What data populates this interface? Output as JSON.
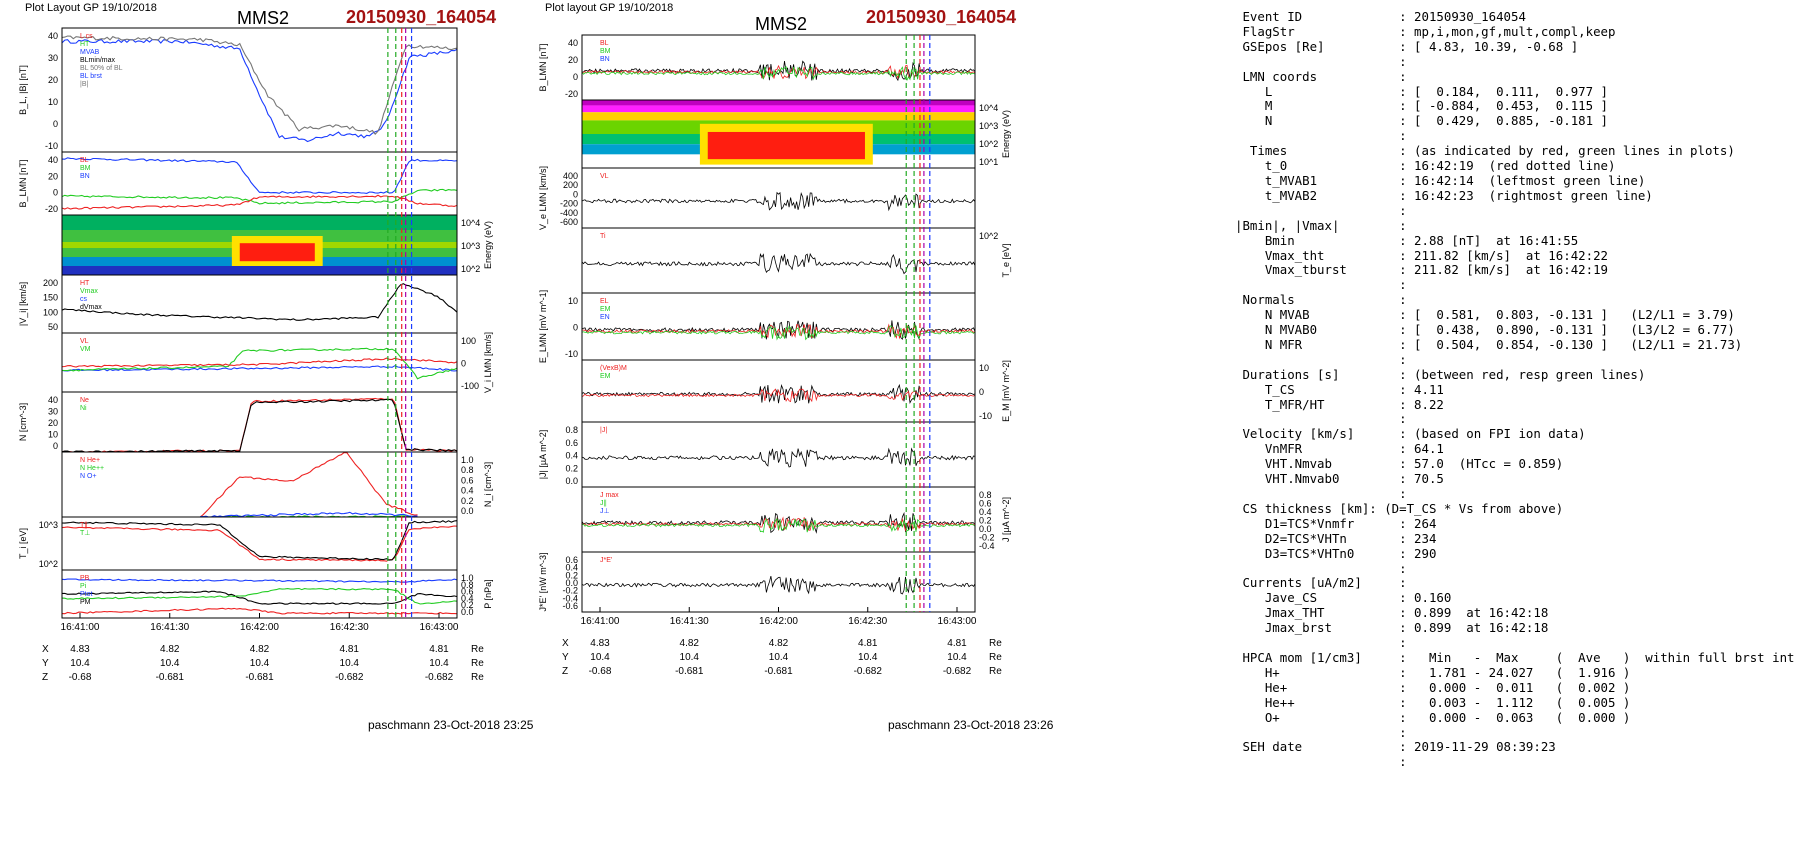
{
  "left": {
    "layout_label": "Plot Layout GP 19/10/2018",
    "spacecraft": "MMS2",
    "event_label": "20150930_164054",
    "footer": "paschmann 23-Oct-2018 23:25"
  },
  "right": {
    "layout_label": "Plot layout GP 19/10/2018",
    "spacecraft": "MMS2",
    "event_label": "20150930_164054",
    "footer": "paschmann 23-Oct-2018 23:26"
  },
  "time_ticks": [
    "16:41:00",
    "16:41:30",
    "16:42:00",
    "16:42:30",
    "16:43:00"
  ],
  "position_table": {
    "unit": "Re",
    "rows": [
      {
        "label": "X",
        "values": [
          "4.83",
          "4.82",
          "4.82",
          "4.81",
          "4.81"
        ]
      },
      {
        "label": "Y",
        "values": [
          "10.4",
          "10.4",
          "10.4",
          "10.4",
          "10.4"
        ]
      },
      {
        "label": "Z",
        "values": [
          "-0.68",
          "-0.681",
          "-0.681",
          "-0.682",
          "-0.682"
        ]
      }
    ]
  },
  "chart_data": [
    {
      "figure": "left",
      "type": "line",
      "ylabel": "B_L, |B| [nT]",
      "ylim": [
        -20,
        45
      ],
      "yticks": [
        "40",
        "30",
        "20",
        "10",
        "0",
        "-10"
      ],
      "legend": [
        "L cs",
        "HT",
        "MVAB",
        "BLmin/max",
        "BL 50% of BL",
        "BL brst",
        "|B|"
      ],
      "series": [
        {
          "name": "BL",
          "color": "#1a3cff",
          "points": [
            [
              0,
              38
            ],
            [
              0.3,
              38
            ],
            [
              0.38,
              36
            ],
            [
              0.45,
              34
            ],
            [
              0.5,
              10
            ],
            [
              0.55,
              -12
            ],
            [
              0.62,
              -14
            ],
            [
              0.7,
              -10
            ],
            [
              0.78,
              -12
            ],
            [
              0.82,
              -5
            ],
            [
              0.88,
              30
            ],
            [
              1,
              33
            ]
          ]
        },
        {
          "name": "|B|",
          "color": "#777777",
          "points": [
            [
              0,
              40
            ],
            [
              0.35,
              39
            ],
            [
              0.45,
              36
            ],
            [
              0.52,
              10
            ],
            [
              0.6,
              -8
            ],
            [
              0.7,
              -6
            ],
            [
              0.8,
              -10
            ],
            [
              0.87,
              36
            ],
            [
              1,
              34
            ]
          ]
        }
      ]
    },
    {
      "figure": "left",
      "type": "line",
      "ylabel": "B_LMN [nT]",
      "ylim": [
        -25,
        45
      ],
      "yticks": [
        "40",
        "20",
        "0",
        "-20"
      ],
      "legend": [
        "BL",
        "BM",
        "BN"
      ],
      "series": [
        {
          "name": "BL",
          "color": "#1a3cff",
          "points": [
            [
              0,
              38
            ],
            [
              0.44,
              34
            ],
            [
              0.5,
              0
            ],
            [
              0.84,
              0
            ],
            [
              0.88,
              36
            ],
            [
              1,
              35
            ]
          ]
        },
        {
          "name": "BM",
          "color": "#22cc22",
          "points": [
            [
              0,
              -4
            ],
            [
              0.44,
              -6
            ],
            [
              0.5,
              -12
            ],
            [
              0.84,
              -10
            ],
            [
              0.9,
              2
            ],
            [
              1,
              3
            ]
          ]
        },
        {
          "name": "BN",
          "color": "#ee2222",
          "points": [
            [
              0,
              -18
            ],
            [
              0.44,
              -14
            ],
            [
              0.5,
              -5
            ],
            [
              0.84,
              -4
            ],
            [
              0.9,
              -12
            ],
            [
              1,
              -15
            ]
          ]
        }
      ]
    },
    {
      "figure": "left",
      "type": "heatmap",
      "ylabel": "Energy (eV)",
      "yticks": [
        "10^4",
        "10^3",
        "10^2"
      ]
    },
    {
      "figure": "left",
      "type": "line",
      "ylabel": "|V_i| [km/s]",
      "ylim": [
        0,
        220
      ],
      "yticks": [
        "200",
        "150",
        "100",
        "50"
      ],
      "legend": [
        "HT",
        "Vmax",
        "cs",
        "dVmax"
      ],
      "series": [
        {
          "name": "|Vi|",
          "color": "#000000",
          "points": [
            [
              0,
              90
            ],
            [
              0.2,
              70
            ],
            [
              0.4,
              60
            ],
            [
              0.6,
              50
            ],
            [
              0.8,
              60
            ],
            [
              0.86,
              190
            ],
            [
              0.95,
              140
            ],
            [
              1,
              80
            ]
          ]
        }
      ]
    },
    {
      "figure": "left",
      "type": "line",
      "ylabel": "V_i LMN [km/s]",
      "ylim": [
        -150,
        150
      ],
      "yticks": [
        "100",
        "0",
        "-100"
      ],
      "legend": [
        "VL",
        "VM"
      ],
      "series": [
        {
          "name": "VL",
          "color": "#1a3cff",
          "points": [
            [
              0,
              -40
            ],
            [
              0.5,
              -30
            ],
            [
              0.84,
              -20
            ],
            [
              1,
              -40
            ]
          ]
        },
        {
          "name": "VM",
          "color": "#22cc22",
          "points": [
            [
              0,
              -40
            ],
            [
              0.42,
              -20
            ],
            [
              0.46,
              60
            ],
            [
              0.84,
              70
            ],
            [
              0.9,
              -80
            ],
            [
              1,
              -30
            ]
          ]
        },
        {
          "name": "VN",
          "color": "#ee2222",
          "points": [
            [
              0,
              -20
            ],
            [
              0.5,
              -10
            ],
            [
              0.84,
              20
            ],
            [
              1,
              0
            ]
          ]
        }
      ]
    },
    {
      "figure": "left",
      "type": "line",
      "ylabel": "N [cm^-3]",
      "ylim": [
        0,
        45
      ],
      "yticks": [
        "40",
        "30",
        "20",
        "10",
        "0"
      ],
      "legend": [
        "Ne",
        "Ni"
      ],
      "series": [
        {
          "name": "Ne",
          "color": "#ee2222",
          "points": [
            [
              0,
              0
            ],
            [
              0.45,
              1
            ],
            [
              0.48,
              38
            ],
            [
              0.84,
              40
            ],
            [
              0.87,
              2
            ],
            [
              1,
              1
            ]
          ]
        },
        {
          "name": "Ni",
          "color": "#000000",
          "points": [
            [
              0,
              0
            ],
            [
              0.45,
              1
            ],
            [
              0.48,
              37
            ],
            [
              0.84,
              39
            ],
            [
              0.87,
              2
            ],
            [
              1,
              1
            ]
          ]
        }
      ]
    },
    {
      "figure": "left",
      "type": "line",
      "ylabel": "N_i [cm^-3]",
      "ylim": [
        0,
        1.0
      ],
      "yticks": [
        "1.0",
        "0.8",
        "0.6",
        "0.4",
        "0.2",
        "0.0"
      ],
      "legend": [
        "N He+",
        "N He++",
        "N O+"
      ],
      "series": [
        {
          "name": "N He++",
          "color": "#ee2222",
          "points": [
            [
              0.35,
              0.0
            ],
            [
              0.45,
              0.62
            ],
            [
              0.58,
              0.55
            ],
            [
              0.72,
              1.0
            ],
            [
              0.82,
              0.2
            ],
            [
              0.9,
              0.02
            ]
          ]
        },
        {
          "name": "N He+",
          "color": "#22cc22",
          "points": [
            [
              0.35,
              0.0
            ],
            [
              0.9,
              0.01
            ]
          ]
        },
        {
          "name": "N O+",
          "color": "#1a3cff",
          "points": [
            [
              0.35,
              0.0
            ],
            [
              0.58,
              0.04
            ],
            [
              0.72,
              0.06
            ],
            [
              0.9,
              0.02
            ]
          ]
        }
      ]
    },
    {
      "figure": "left",
      "type": "line",
      "ylabel": "T_i [eV]",
      "yticks": [
        "10^3",
        "10^2"
      ],
      "legend": [
        "T∥",
        "T⊥"
      ],
      "series": [
        {
          "name": "T∥",
          "color": "#ee2222",
          "points": [
            [
              0,
              0.8
            ],
            [
              0.4,
              0.75
            ],
            [
              0.5,
              0.2
            ],
            [
              0.84,
              0.18
            ],
            [
              0.88,
              0.78
            ],
            [
              1,
              0.82
            ]
          ]
        },
        {
          "name": "T⊥",
          "color": "#000000",
          "points": [
            [
              0,
              0.9
            ],
            [
              0.4,
              0.85
            ],
            [
              0.5,
              0.25
            ],
            [
              0.84,
              0.2
            ],
            [
              0.88,
              0.9
            ],
            [
              1,
              0.92
            ]
          ]
        }
      ]
    },
    {
      "figure": "left",
      "type": "line",
      "ylabel": "P [nPa]",
      "ylim": [
        0,
        1.0
      ],
      "yticks": [
        "1.0",
        "0.8",
        "0.6",
        "0.4",
        "0.2",
        "0.0"
      ],
      "legend": [
        "PB",
        "Pi",
        "Ptot",
        "PM"
      ],
      "series": [
        {
          "name": "PB",
          "color": "#1a3cff",
          "points": [
            [
              0,
              0.8
            ],
            [
              0.5,
              0.78
            ],
            [
              0.85,
              0.75
            ],
            [
              1,
              0.8
            ]
          ]
        },
        {
          "name": "Pi",
          "color": "#ee2222",
          "points": [
            [
              0,
              0.1
            ],
            [
              0.45,
              0.2
            ],
            [
              0.55,
              0.1
            ],
            [
              1,
              0.1
            ]
          ]
        },
        {
          "name": "Ptot",
          "color": "#000000",
          "points": [
            [
              0,
              0.5
            ],
            [
              0.4,
              0.55
            ],
            [
              0.5,
              0.3
            ],
            [
              0.84,
              0.3
            ],
            [
              0.9,
              0.5
            ],
            [
              1,
              0.45
            ]
          ]
        },
        {
          "name": "PM",
          "color": "#22cc22",
          "points": [
            [
              0,
              0.4
            ],
            [
              0.45,
              0.45
            ],
            [
              0.55,
              0.6
            ],
            [
              0.84,
              0.6
            ],
            [
              0.9,
              0.3
            ],
            [
              1,
              0.35
            ]
          ]
        }
      ]
    },
    {
      "figure": "right",
      "type": "line",
      "ylabel": "B_LMN [nT]",
      "ylim": [
        -22,
        45
      ],
      "yticks": [
        "40",
        "20",
        "0",
        "-20"
      ],
      "legend": [
        "BL",
        "BM",
        "BN"
      ]
    },
    {
      "figure": "right",
      "type": "heatmap",
      "ylabel": "Energy (eV)",
      "yticks": [
        "10^4",
        "10^3",
        "10^2",
        "10^1"
      ]
    },
    {
      "figure": "right",
      "type": "line",
      "ylabel": "V_e LMN [km/s]",
      "ylim": [
        -700,
        450
      ],
      "yticks": [
        "400",
        "200",
        "0",
        "-200",
        "-400",
        "-600"
      ],
      "legend": [
        "VL"
      ]
    },
    {
      "figure": "right",
      "type": "line",
      "ylabel": "T_e [eV]",
      "yticks": [
        "10^2"
      ],
      "legend": [
        "Ti"
      ]
    },
    {
      "figure": "right",
      "type": "line",
      "ylabel": "E_LMN [mV m^-1]",
      "ylim": [
        -15,
        15
      ],
      "yticks": [
        "10",
        "0",
        "-10"
      ],
      "legend": [
        "EL",
        "EM",
        "EN"
      ]
    },
    {
      "figure": "right",
      "type": "line",
      "ylabel": "E_M [mV m^-2]",
      "ylim": [
        -15,
        15
      ],
      "yticks": [
        "10",
        "0",
        "-10"
      ],
      "legend": [
        "(VexB)M",
        "EM"
      ]
    },
    {
      "figure": "right",
      "type": "line",
      "ylabel": "|J| [µA m^-2]",
      "ylim": [
        0,
        0.9
      ],
      "yticks": [
        "0.8",
        "0.6",
        "0.4",
        "0.2",
        "0.0"
      ],
      "legend": [
        "|J|"
      ]
    },
    {
      "figure": "right",
      "type": "line",
      "ylabel": "J [µA m^-2]",
      "ylim": [
        -0.45,
        0.9
      ],
      "yticks": [
        "0.8",
        "0.6",
        "0.4",
        "0.2",
        "0.0",
        "-0.2",
        "-0.4"
      ],
      "legend": [
        "J max",
        "J∥",
        "J⊥"
      ]
    },
    {
      "figure": "right",
      "type": "line",
      "ylabel": "J*E' [nW m^-3]",
      "ylim": [
        -0.7,
        0.7
      ],
      "yticks": [
        "0.6",
        "0.4",
        "0.2",
        "0.0",
        "-0.2",
        "-0.4",
        "-0.6"
      ],
      "legend": [
        "J*E'"
      ]
    }
  ],
  "summary_lines": [
    " Event ID             : 20150930_164054",
    " FlagStr              : mp,i,mon,gf,mult,compl,keep",
    " GSEpos [Re]          : [ 4.83, 10.39, -0.68 ]",
    "                      :",
    " LMN coords           :",
    "    L                 : [  0.184,  0.111,  0.977 ]",
    "    M                 : [ -0.884,  0.453,  0.115 ]",
    "    N                 : [  0.429,  0.885, -0.181 ]",
    "                      :",
    "  Times               : (as indicated by red, green lines in plots)",
    "    t_0               : 16:42:19  (red dotted line)",
    "    t_MVAB1           : 16:42:14  (leftmost green line)",
    "    t_MVAB2           : 16:42:23  (rightmost green line)",
    "                      :",
    "|Bmin|, |Vmax|        :",
    "    Bmin              : 2.88 [nT]  at 16:41:55",
    "    Vmax_tht          : 211.82 [km/s]  at 16:42:22",
    "    Vmax_tburst       : 211.82 [km/s]  at 16:42:19",
    "                      :",
    " Normals              :",
    "    N MVAB            : [  0.581,  0.803, -0.131 ]   (L2/L1 = 3.79)",
    "    N MVAB0           : [  0.438,  0.890, -0.131 ]   (L3/L2 = 6.77)",
    "    N MFR             : [  0.504,  0.854, -0.130 ]   (L2/L1 = 21.73)",
    "                      :",
    " Durations [s]        : (between red, resp green lines)",
    "    T_CS              : 4.11",
    "    T_MFR/HT          : 8.22",
    "                      :",
    " Velocity [km/s]      : (based on FPI ion data)",
    "    VnMFR             : 64.1",
    "    VHT.Nmvab         : 57.0  (HTcc = 0.859)",
    "    VHT.Nmvab0        : 70.5",
    "                      :",
    " CS thickness [km]: (D=T_CS * Vs from above)",
    "    D1=TCS*Vnmfr      : 264",
    "    D2=TCS*VHTn       : 234",
    "    D3=TCS*VHTn0      : 290",
    "                      :",
    " Currents [uA/m2]     :",
    "    Jave_CS           : 0.160",
    "    Jmax_THT          : 0.899  at 16:42:18",
    "    Jmax_brst         : 0.899  at 16:42:18",
    "                      :",
    " HPCA mom [1/cm3]     :   Min   -  Max     (  Ave   )  within full brst int",
    "    H+                :   1.781 - 24.027   (  1.916 )",
    "    He+               :   0.000 -  0.011   (  0.002 )",
    "    He++              :   0.003 -  1.112   (  0.005 )",
    "    O+                :   0.000 -  0.063   (  0.000 )",
    "                      :",
    " SEH date             : 2019-11-29 08:39:23",
    "                      :"
  ]
}
